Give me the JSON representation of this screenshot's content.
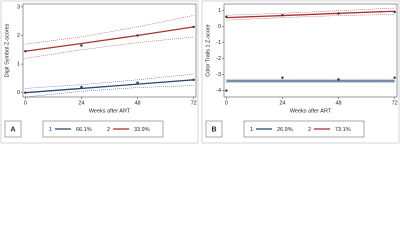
{
  "chart_data": [
    {
      "type": "line",
      "panel_label": "A",
      "y_label": "Digit Symbol Z-scores",
      "x_label": "Weeks after ART",
      "x": [
        0,
        24,
        48,
        72
      ],
      "xlim": [
        -1,
        73
      ],
      "xticks": [
        0,
        24,
        48,
        72
      ],
      "ylim": [
        -0.15,
        3.1
      ],
      "yticks": [
        0,
        1,
        2,
        3
      ],
      "grid": false,
      "series": [
        {
          "name": "1",
          "legend_percent": "66.1%",
          "color": "#2b4a7a",
          "values": [
            0.0,
            0.2,
            0.35,
            0.45
          ],
          "fit": [
            0.0,
            0.15,
            0.3,
            0.45
          ],
          "ci_lower": [
            -0.15,
            0.05,
            0.18,
            0.25
          ],
          "ci_upper": [
            0.15,
            0.28,
            0.45,
            0.65
          ]
        },
        {
          "name": "2",
          "legend_percent": "33.9%",
          "color": "#a83232",
          "values": [
            1.45,
            1.65,
            2.0,
            2.3
          ],
          "fit": [
            1.45,
            1.72,
            2.0,
            2.3
          ],
          "ci_lower": [
            1.2,
            1.5,
            1.75,
            1.95
          ],
          "ci_upper": [
            1.7,
            1.95,
            2.3,
            2.7
          ]
        }
      ]
    },
    {
      "type": "line",
      "panel_label": "B",
      "y_label": "Color Trails 1 Z-score",
      "x_label": "Weeks after ART",
      "x": [
        0,
        24,
        48,
        72
      ],
      "xlim": [
        -1,
        73
      ],
      "xticks": [
        0,
        24,
        48,
        72
      ],
      "ylim": [
        -4.4,
        1.4
      ],
      "yticks": [
        -4,
        -3,
        -2,
        -1,
        0,
        1
      ],
      "grid": false,
      "series": [
        {
          "name": "1",
          "legend_percent": "26.9%",
          "color": "#2b4a7a",
          "values": [
            -4.0,
            -3.2,
            -3.3,
            -3.2
          ],
          "fit": [
            -3.4,
            -3.4,
            -3.4,
            -3.4
          ],
          "ci_lower": [
            -3.5,
            -3.5,
            -3.5,
            -3.5
          ],
          "ci_upper": [
            -3.3,
            -3.3,
            -3.3,
            -3.3
          ]
        },
        {
          "name": "2",
          "legend_percent": "73.1%",
          "color": "#a83232",
          "values": [
            0.6,
            0.7,
            0.8,
            0.9
          ],
          "fit": [
            0.55,
            0.68,
            0.82,
            0.95
          ],
          "ci_lower": [
            0.4,
            0.55,
            0.68,
            0.75
          ],
          "ci_upper": [
            0.7,
            0.82,
            0.98,
            1.15
          ]
        }
      ]
    }
  ]
}
